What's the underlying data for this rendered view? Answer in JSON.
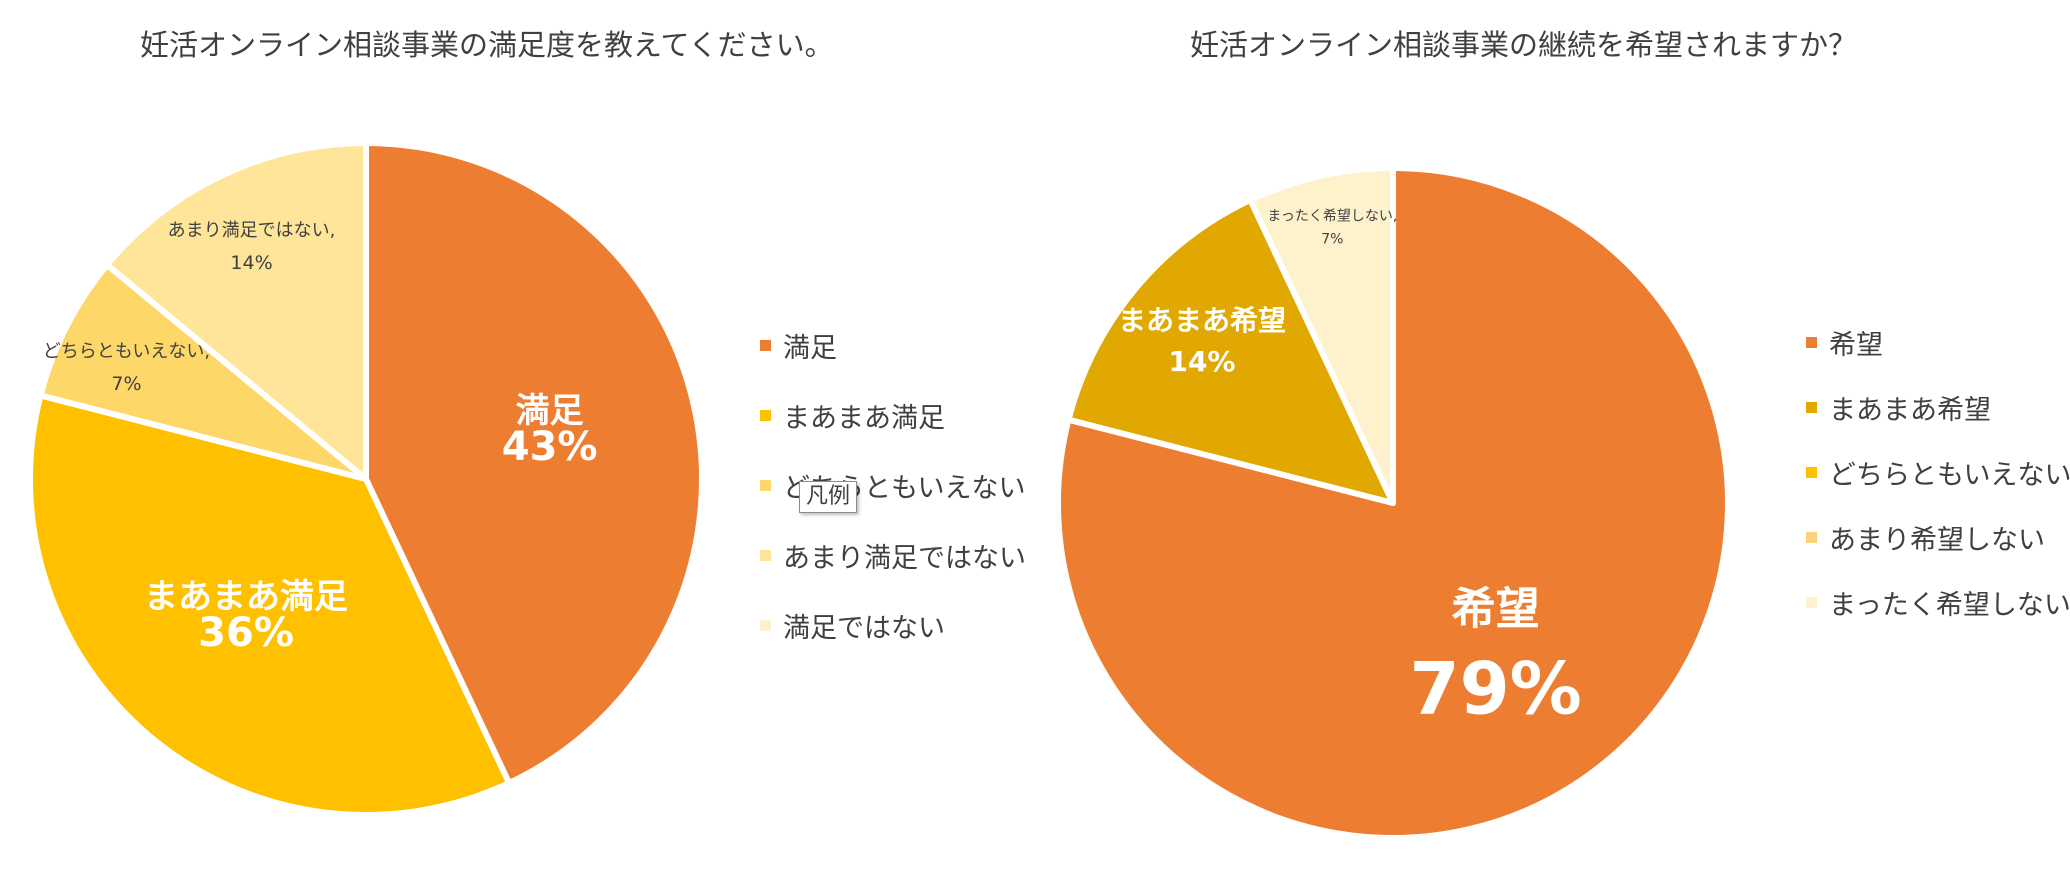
{
  "chart_data": [
    {
      "type": "pie",
      "title": "妊活オンライン相談事業の満足度を教えてください。",
      "start_angle_deg": 0,
      "direction": "clockwise",
      "slices": [
        {
          "label": "満足",
          "value": 43,
          "value_text": "43%",
          "color": "#ED7D31",
          "label_style": "large",
          "name": "satisfied"
        },
        {
          "label": "まあまあ満足",
          "value": 36,
          "value_text": "36%",
          "color": "#FFC000",
          "label_style": "large",
          "name": "somewhat-satisfied"
        },
        {
          "label": "どちらともいえない",
          "value": 7,
          "value_text": "7%",
          "color": "#FDD868",
          "label_style": "small",
          "name": "neutral"
        },
        {
          "label": "あまり満足ではない",
          "value": 14,
          "value_text": "14%",
          "color": "#FEE599",
          "label_style": "small",
          "name": "not-very-satisfied"
        }
      ],
      "legend": {
        "position": "right",
        "entries": [
          {
            "label": "満足",
            "color": "#ED7D31"
          },
          {
            "label": "まあまあ満足",
            "color": "#FFC000"
          },
          {
            "label": "どちらともいえない",
            "color": "#FDD868"
          },
          {
            "label": "あまり満足ではない",
            "color": "#FEE599"
          },
          {
            "label": "満足ではない",
            "color": "#FEF2CC"
          }
        ]
      }
    },
    {
      "type": "pie",
      "title": "妊活オンライン相談事業の継続を希望されますか？",
      "start_angle_deg": 0,
      "direction": "clockwise",
      "slices": [
        {
          "label": "希望",
          "value": 79,
          "value_text": "79%",
          "color": "#ED7D31",
          "label_style": "xlarge",
          "name": "want-continue"
        },
        {
          "label": "まあまあ希望",
          "value": 14,
          "value_text": "14%",
          "color": "#E0A800",
          "label_style": "medium",
          "name": "somewhat-want"
        },
        {
          "label": "まったく希望しない",
          "value": 7,
          "value_text": "7%",
          "color": "#FEF2CC",
          "label_style": "tiny",
          "name": "not-at-all"
        }
      ],
      "legend": {
        "position": "right",
        "entries": [
          {
            "label": "希望",
            "color": "#ED7D31"
          },
          {
            "label": "まあまあ希望",
            "color": "#E0A800"
          },
          {
            "label": "どちらともいえない",
            "color": "#FFC000"
          },
          {
            "label": "あまり希望しない",
            "color": "#FDD27E"
          },
          {
            "label": "まったく希望しない",
            "color": "#FEF2CC"
          }
        ]
      }
    }
  ],
  "ui": {
    "legend_tooltip": "凡例"
  }
}
